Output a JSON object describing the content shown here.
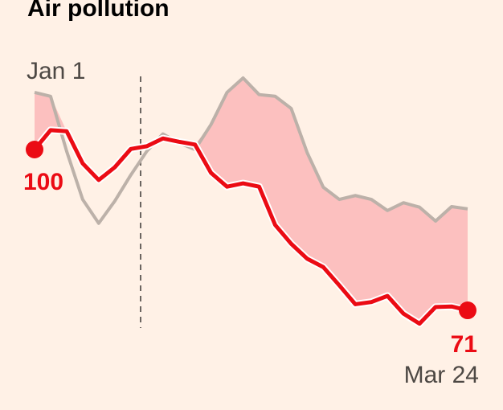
{
  "chart_data": {
    "type": "line",
    "title": "Air pollution",
    "categories": [
      "Jan 1",
      null,
      null,
      null,
      null,
      null,
      null,
      null,
      null,
      null,
      null,
      null,
      null,
      null,
      null,
      null,
      null,
      null,
      null,
      null,
      null,
      null,
      null,
      null,
      null,
      null,
      null,
      "Mar 24"
    ],
    "series": [
      {
        "color": "#eb0b14",
        "values": [
          100,
          103.5,
          103.3,
          97.5,
          94.5,
          96.8,
          100.1,
          100.6,
          102.0,
          101.4,
          100.9,
          95.8,
          93.3,
          93.9,
          93.3,
          86.4,
          83.0,
          80.3,
          78.8,
          75.5,
          72.1,
          72.5,
          73.6,
          70.4,
          68.6,
          71.6,
          71.7,
          71
        ]
      },
      {
        "color": "#bcb1a9",
        "values": [
          110.3,
          109.6,
          99.7,
          91.0,
          86.7,
          90.7,
          95.4,
          99.7,
          102.8,
          101.2,
          100,
          104.5,
          110.3,
          112.9,
          109.9,
          109.6,
          107.4,
          99.4,
          93.2,
          91.0,
          91.7,
          91.0,
          89.0,
          90.4,
          89.6,
          87.1,
          89.7,
          89.3
        ]
      }
    ],
    "area_color": "#fcc0bf"
  }
}
